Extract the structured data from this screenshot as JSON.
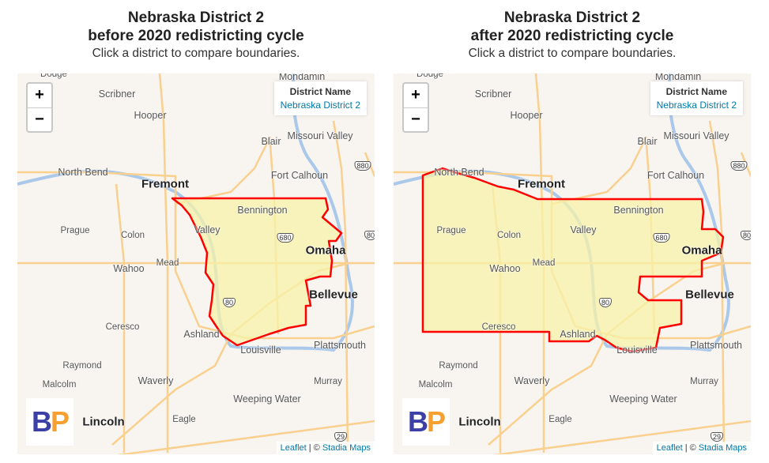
{
  "panels": [
    {
      "title_line1": "Nebraska District 2",
      "title_line2": "before 2020 redistricting cycle",
      "subtitle": "Click a district to compare boundaries.",
      "info": {
        "header": "District Name",
        "value": "Nebraska District 2"
      }
    },
    {
      "title_line1": "Nebraska District 2",
      "title_line2": "after 2020 redistricting cycle",
      "subtitle": "Click a district to compare boundaries.",
      "info": {
        "header": "District Name",
        "value": "Nebraska District 2"
      }
    }
  ],
  "map": {
    "zoom_in": "+",
    "zoom_out": "−",
    "labels": [
      "Dodge",
      "Mondamin",
      "Scribner",
      "Hooper",
      "Blair",
      "Missouri Valley",
      "North Bend",
      "Fremont",
      "Fort Calhoun",
      "Bennington",
      "Prague",
      "Colon",
      "Valley",
      "Omaha",
      "Wahoo",
      "Mead",
      "Bellevue",
      "Ceresco",
      "Ashland",
      "Louisville",
      "Plattsmouth",
      "Raymond",
      "Malcolm",
      "Waverly",
      "Murray",
      "Weeping Water",
      "Eagle",
      "Lincoln"
    ],
    "highway_shields": [
      "880",
      "680",
      "80",
      "29",
      "80"
    ],
    "logo": "BP",
    "attribution": {
      "leaflet": "Leaflet",
      "separator": " | © ",
      "stadia": "Stadia Maps"
    },
    "district_fill": "#f7f3a8",
    "district_stroke": "#ff0000"
  }
}
